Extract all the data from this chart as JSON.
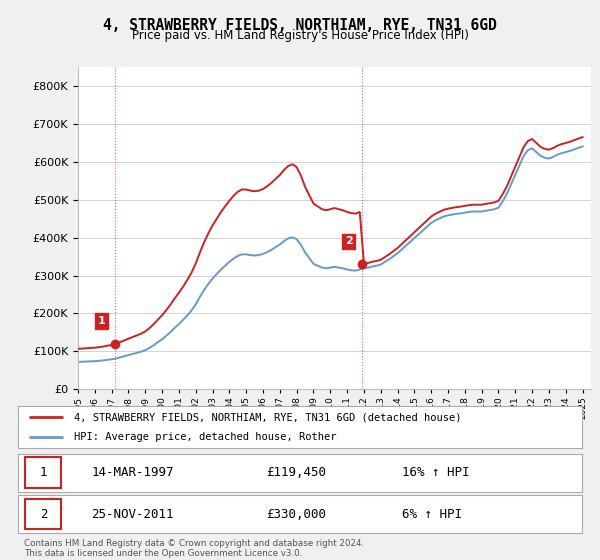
{
  "title": "4, STRAWBERRY FIELDS, NORTHIAM, RYE, TN31 6GD",
  "subtitle": "Price paid vs. HM Land Registry's House Price Index (HPI)",
  "legend_line1": "4, STRAWBERRY FIELDS, NORTHIAM, RYE, TN31 6GD (detached house)",
  "legend_line2": "HPI: Average price, detached house, Rother",
  "footnote": "Contains HM Land Registry data © Crown copyright and database right 2024.\nThis data is licensed under the Open Government Licence v3.0.",
  "sale1_date": "14-MAR-1997",
  "sale1_price": "£119,450",
  "sale1_hpi": "16% ↑ HPI",
  "sale2_date": "25-NOV-2011",
  "sale2_price": "£330,000",
  "sale2_hpi": "6% ↑ HPI",
  "hpi_color": "#6699cc",
  "price_color": "#cc2222",
  "ylim_min": 0,
  "ylim_max": 850000,
  "background_color": "#f0f0f0",
  "plot_bg_color": "#ffffff",
  "sale1_year": 1997.21,
  "sale1_price_val": 119450,
  "sale2_year": 2011.9,
  "sale2_price_val": 330000
}
